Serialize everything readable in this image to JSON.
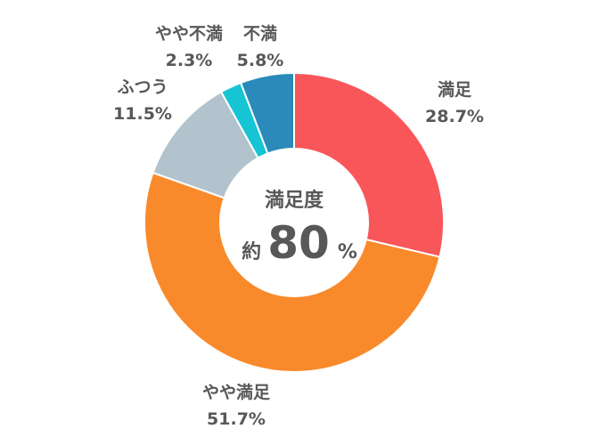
{
  "chart_data": {
    "type": "pie",
    "slices": [
      {
        "label": "満足",
        "value": 28.7,
        "display": "28.7%",
        "color": "#f9565a"
      },
      {
        "label": "やや満足",
        "value": 51.7,
        "display": "51.7%",
        "color": "#f98a2c"
      },
      {
        "label": "ふつう",
        "value": 11.5,
        "display": "11.5%",
        "color": "#b2c3cd"
      },
      {
        "label": "やや不満",
        "value": 2.3,
        "display": "2.3%",
        "color": "#16c4d4"
      },
      {
        "label": "不満",
        "value": 5.8,
        "display": "5.8%",
        "color": "#2b8ab9"
      }
    ],
    "center": {
      "title": "満足度",
      "prefix": "約",
      "number": "80",
      "suffix": "%"
    }
  }
}
